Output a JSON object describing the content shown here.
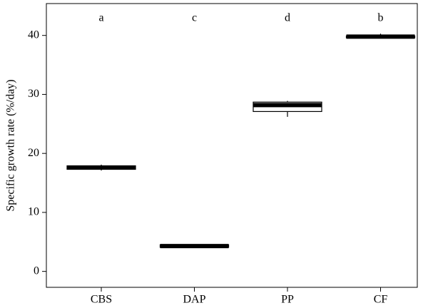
{
  "chart_data": {
    "type": "box",
    "ylabel": "Specific growth rate (%/day)",
    "categories": [
      "CBS",
      "DAP",
      "PP",
      "CF"
    ],
    "annotations": [
      "a",
      "c",
      "d",
      "b"
    ],
    "boxes": [
      {
        "min": 17.1,
        "q1": 17.3,
        "median": 17.6,
        "q3": 17.9,
        "max": 18.1
      },
      {
        "min": 4.1,
        "q1": 4.1,
        "median": 4.3,
        "q3": 4.5,
        "max": 4.5
      },
      {
        "min": 26.2,
        "q1": 27.1,
        "median": 28.2,
        "q3": 28.7,
        "max": 28.9
      },
      {
        "min": 39.6,
        "q1": 39.6,
        "median": 39.8,
        "q3": 39.9,
        "max": 40.3
      }
    ],
    "color": "#000000",
    "ylim": [
      -2.7,
      45.4
    ],
    "yticks": [
      0,
      10,
      20,
      30,
      40
    ]
  }
}
